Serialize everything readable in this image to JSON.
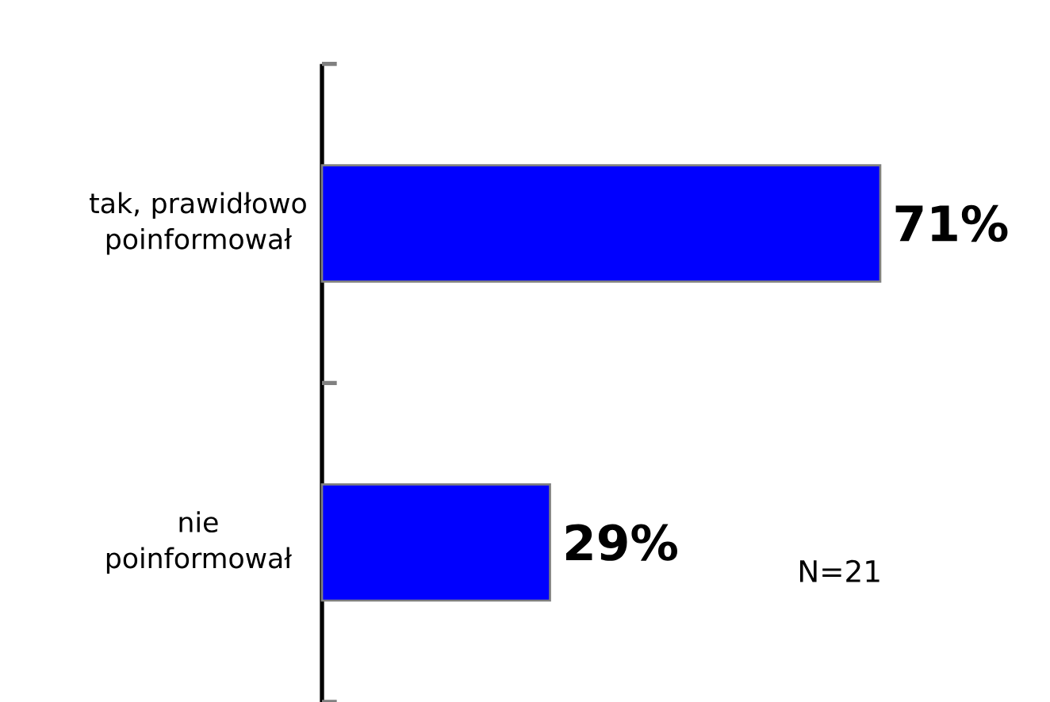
{
  "chart_data": {
    "type": "bar",
    "orientation": "horizontal",
    "categories": [
      "tak, prawidłowo poinformował",
      "nie poinformował"
    ],
    "values": [
      71,
      29
    ],
    "color": "#0000ff",
    "value_labels": [
      "71%",
      "29%"
    ],
    "annotations": [
      "N=21"
    ]
  }
}
